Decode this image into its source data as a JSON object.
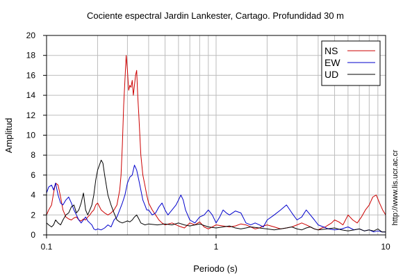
{
  "chart_data": {
    "type": "line",
    "title": "Cociente espectral Jardin Lankester, Cartago. Profundidad 30 m",
    "xlabel": "Periodo (s)",
    "ylabel": "Amplitud",
    "xscale": "log",
    "xlim": [
      0.1,
      10
    ],
    "ylim": [
      0,
      20
    ],
    "xticks": [
      {
        "value": 0.1,
        "label": "0.1"
      },
      {
        "value": 1,
        "label": "1"
      },
      {
        "value": 10,
        "label": "10"
      }
    ],
    "yticks": [
      0,
      2,
      4,
      6,
      8,
      10,
      12,
      14,
      16,
      18,
      20
    ],
    "grid": true,
    "legend_position": "top-right",
    "side_text": "http://www.lis.ucr.ac.cr",
    "series": [
      {
        "name": "NS",
        "color": "#cc0000",
        "x": [
          0.1,
          0.103,
          0.107,
          0.11,
          0.113,
          0.117,
          0.121,
          0.125,
          0.13,
          0.135,
          0.14,
          0.145,
          0.15,
          0.155,
          0.16,
          0.165,
          0.17,
          0.175,
          0.18,
          0.185,
          0.19,
          0.195,
          0.2,
          0.21,
          0.22,
          0.23,
          0.24,
          0.25,
          0.26,
          0.27,
          0.275,
          0.28,
          0.285,
          0.29,
          0.295,
          0.3,
          0.305,
          0.31,
          0.315,
          0.32,
          0.325,
          0.33,
          0.335,
          0.34,
          0.345,
          0.35,
          0.36,
          0.37,
          0.38,
          0.39,
          0.4,
          0.42,
          0.44,
          0.46,
          0.48,
          0.5,
          0.55,
          0.6,
          0.65,
          0.7,
          0.75,
          0.8,
          0.85,
          0.9,
          0.95,
          1.0,
          1.1,
          1.2,
          1.3,
          1.4,
          1.5,
          1.6,
          1.7,
          1.8,
          1.9,
          2.0,
          2.2,
          2.4,
          2.6,
          2.8,
          3.0,
          3.2,
          3.4,
          3.6,
          3.8,
          4.0,
          4.2,
          4.4,
          4.6,
          4.8,
          5.0,
          5.3,
          5.6,
          6.0,
          6.4,
          6.8,
          7.2,
          7.6,
          8.0,
          8.4,
          8.8,
          9.2,
          9.6,
          10.0
        ],
        "y": [
          2.0,
          2.5,
          3.0,
          4.2,
          5.2,
          5.0,
          3.8,
          2.5,
          1.8,
          1.6,
          1.5,
          1.7,
          1.8,
          1.5,
          1.4,
          1.6,
          1.5,
          1.8,
          2.0,
          2.3,
          2.5,
          3.0,
          3.2,
          2.5,
          2.2,
          2.0,
          2.2,
          2.5,
          3.0,
          4.5,
          6.0,
          9.0,
          13.0,
          15.5,
          18.0,
          16.5,
          14.5,
          15.0,
          14.8,
          15.5,
          14.0,
          15.0,
          16.0,
          16.5,
          14.0,
          12.0,
          8.0,
          6.0,
          5.0,
          4.0,
          3.2,
          2.5,
          2.0,
          1.5,
          1.2,
          1.0,
          1.2,
          0.9,
          0.7,
          1.2,
          1.0,
          1.3,
          0.8,
          0.6,
          0.8,
          1.0,
          0.9,
          0.8,
          0.9,
          1.1,
          1.0,
          0.8,
          0.6,
          0.7,
          0.9,
          1.0,
          0.8,
          0.6,
          0.7,
          0.8,
          1.0,
          1.2,
          1.0,
          0.8,
          0.6,
          0.5,
          0.7,
          0.8,
          1.0,
          1.2,
          1.5,
          1.3,
          1.0,
          2.0,
          1.5,
          1.2,
          1.8,
          2.5,
          3.0,
          3.8,
          4.0,
          3.2,
          2.5,
          2.0
        ]
      },
      {
        "name": "EW",
        "color": "#0000cc",
        "x": [
          0.1,
          0.103,
          0.107,
          0.11,
          0.113,
          0.117,
          0.121,
          0.125,
          0.13,
          0.135,
          0.14,
          0.145,
          0.15,
          0.155,
          0.16,
          0.165,
          0.17,
          0.175,
          0.18,
          0.185,
          0.19,
          0.195,
          0.2,
          0.21,
          0.22,
          0.23,
          0.24,
          0.25,
          0.26,
          0.27,
          0.28,
          0.29,
          0.3,
          0.31,
          0.32,
          0.33,
          0.34,
          0.35,
          0.36,
          0.37,
          0.38,
          0.39,
          0.4,
          0.42,
          0.44,
          0.46,
          0.48,
          0.5,
          0.52,
          0.55,
          0.58,
          0.6,
          0.62,
          0.64,
          0.66,
          0.68,
          0.7,
          0.75,
          0.8,
          0.85,
          0.9,
          0.95,
          1.0,
          1.05,
          1.1,
          1.15,
          1.2,
          1.3,
          1.4,
          1.5,
          1.6,
          1.7,
          1.8,
          1.9,
          2.0,
          2.2,
          2.4,
          2.6,
          2.8,
          3.0,
          3.2,
          3.4,
          3.6,
          3.8,
          4.0,
          4.3,
          4.6,
          5.0,
          5.5,
          6.0,
          6.5,
          7.0,
          7.5,
          8.0,
          8.5,
          9.0,
          9.5,
          10.0
        ],
        "y": [
          4.2,
          4.8,
          5.0,
          4.5,
          5.2,
          4.0,
          3.2,
          3.0,
          3.5,
          3.8,
          3.2,
          2.5,
          2.0,
          1.5,
          1.2,
          1.5,
          1.8,
          1.4,
          1.2,
          1.0,
          0.6,
          0.5,
          0.6,
          0.5,
          0.7,
          1.0,
          0.8,
          1.5,
          1.8,
          2.5,
          3.2,
          4.0,
          5.2,
          5.8,
          6.0,
          7.0,
          6.5,
          5.5,
          4.5,
          3.5,
          3.0,
          2.5,
          2.5,
          2.0,
          2.2,
          2.8,
          3.2,
          2.5,
          2.0,
          2.5,
          3.0,
          3.5,
          4.0,
          3.5,
          2.5,
          2.0,
          1.5,
          1.2,
          1.8,
          2.0,
          2.5,
          2.0,
          1.2,
          1.8,
          2.5,
          2.2,
          2.0,
          2.4,
          2.2,
          1.2,
          1.0,
          1.2,
          1.0,
          0.8,
          1.5,
          2.0,
          2.5,
          3.0,
          2.2,
          1.5,
          1.8,
          2.5,
          2.0,
          1.5,
          1.0,
          0.8,
          0.6,
          0.5,
          0.6,
          0.8,
          0.5,
          0.6,
          0.4,
          0.5,
          0.3,
          0.4,
          0.3,
          0.3
        ]
      },
      {
        "name": "UD",
        "color": "#000000",
        "x": [
          0.1,
          0.103,
          0.107,
          0.11,
          0.113,
          0.117,
          0.121,
          0.125,
          0.13,
          0.135,
          0.14,
          0.145,
          0.15,
          0.155,
          0.16,
          0.165,
          0.17,
          0.175,
          0.18,
          0.185,
          0.19,
          0.195,
          0.2,
          0.205,
          0.21,
          0.215,
          0.22,
          0.23,
          0.24,
          0.25,
          0.26,
          0.27,
          0.28,
          0.29,
          0.3,
          0.31,
          0.32,
          0.33,
          0.34,
          0.35,
          0.36,
          0.38,
          0.4,
          0.45,
          0.5,
          0.55,
          0.6,
          0.65,
          0.7,
          0.75,
          0.8,
          0.9,
          1.0,
          1.1,
          1.2,
          1.3,
          1.4,
          1.5,
          1.6,
          1.8,
          2.0,
          2.2,
          2.4,
          2.6,
          2.8,
          3.0,
          3.2,
          3.4,
          3.6,
          3.8,
          4.0,
          4.5,
          5.0,
          5.5,
          6.0,
          6.5,
          7.0,
          7.5,
          8.0,
          8.5,
          9.0,
          9.5,
          10.0
        ],
        "y": [
          1.2,
          1.0,
          0.8,
          1.0,
          1.5,
          1.2,
          1.0,
          1.5,
          2.0,
          2.2,
          2.8,
          3.0,
          2.2,
          2.5,
          3.2,
          4.2,
          2.5,
          2.0,
          2.5,
          3.0,
          4.0,
          5.5,
          6.5,
          7.0,
          7.5,
          7.2,
          6.0,
          4.0,
          3.0,
          2.2,
          1.5,
          1.3,
          1.2,
          1.3,
          1.4,
          1.3,
          1.5,
          1.8,
          2.0,
          1.6,
          1.2,
          1.0,
          1.1,
          1.0,
          1.1,
          1.0,
          1.2,
          1.0,
          0.9,
          1.0,
          1.1,
          0.8,
          0.7,
          0.8,
          0.9,
          0.7,
          0.6,
          0.7,
          0.8,
          0.7,
          0.6,
          0.5,
          0.6,
          0.7,
          0.8,
          0.6,
          0.5,
          0.7,
          0.8,
          0.6,
          0.5,
          0.6,
          0.7,
          0.5,
          0.4,
          0.5,
          0.6,
          0.4,
          0.5,
          0.4,
          0.6,
          0.3,
          0.3
        ]
      }
    ]
  }
}
